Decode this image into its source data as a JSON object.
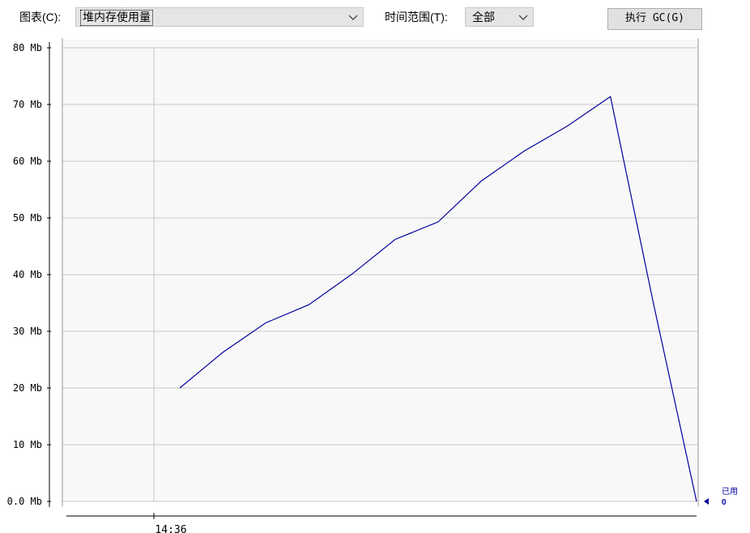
{
  "toolbar": {
    "chart_label": "图表(C):",
    "chart_value": "堆内存使用量",
    "range_label": "时间范围(T):",
    "range_value": "全部",
    "gc_button": "执行 GC(G)"
  },
  "chart_data": {
    "type": "line",
    "ylabel": "",
    "y_ticks": [
      "80 Mb",
      "70 Mb",
      "60 Mb",
      "50 Mb",
      "40 Mb",
      "30 Mb",
      "20 Mb",
      "10 Mb",
      "0.0 Mb"
    ],
    "ylim": [
      0,
      80
    ],
    "x_ticks": [
      "14:36"
    ],
    "grid": true,
    "series": [
      {
        "name": "已用",
        "color": "#00009c",
        "values": [
          20,
          26.3,
          31.5,
          34.7,
          40.1,
          46.2,
          49.3,
          56.5,
          61.8,
          66.2,
          71.4,
          34.9,
          0
        ]
      }
    ],
    "legend": {
      "label": "已用",
      "value": "0",
      "position": "right"
    }
  }
}
